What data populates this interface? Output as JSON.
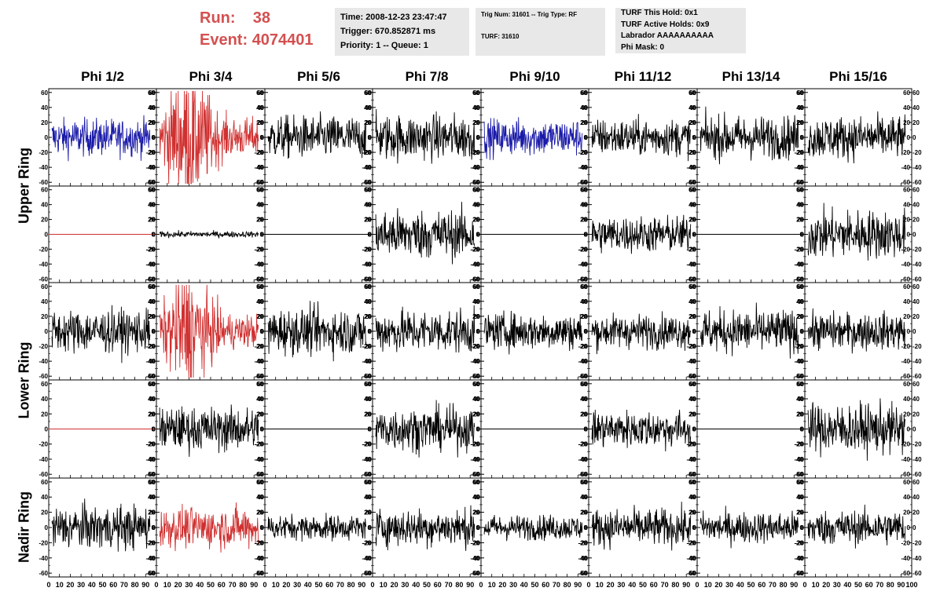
{
  "header": {
    "run_label": "Run:",
    "run_value": "38",
    "event_label": "Event:",
    "event_value": "4074401",
    "time": "Time: 2008-12-23 23:47:47",
    "trigger": "Trigger: 670.852871 ms",
    "priority": "Priority: 1 -- Queue: 1",
    "trig_num": "Trig Num: 31601 -- Trig Type: RF",
    "turf": "TURF: 31610",
    "turf_hold": "TURF This Hold: 0x1",
    "turf_active": "TURF Active Holds: 0x9",
    "labrador": "Labrador AAAAAAAAAA",
    "phi_mask": "Phi Mask: 0"
  },
  "columns": [
    "Phi 1/2",
    "Phi 3/4",
    "Phi 5/6",
    "Phi 7/8",
    "Phi 9/10",
    "Phi 11/12",
    "Phi 13/14",
    "Phi 15/16"
  ],
  "rows": [
    "Upper Ring",
    "Lower Ring",
    "Nadir Ring"
  ],
  "colors": {
    "black": "#000000",
    "blue": "#1a1aa8",
    "red": "#d03030",
    "title_red": "#d45050"
  },
  "chart_data": {
    "type": "line",
    "xlim": [
      0,
      100
    ],
    "ylim": [
      -65,
      65
    ],
    "y_ticks": [
      -60,
      -40,
      -20,
      0,
      20,
      40,
      60
    ],
    "x_tick_labels": [
      "0",
      "10",
      "20",
      "30",
      "40",
      "50",
      "60",
      "70",
      "80",
      "90",
      "100"
    ],
    "panels": [
      {
        "row": 0,
        "col": 0,
        "color": "blue",
        "amplitude": 12,
        "flat": false
      },
      {
        "row": 0,
        "col": 1,
        "color": "red",
        "amplitude": 25,
        "flat": false
      },
      {
        "row": 0,
        "col": 2,
        "color": "black",
        "amplitude": 14,
        "flat": false
      },
      {
        "row": 0,
        "col": 3,
        "color": "black",
        "amplitude": 15,
        "flat": false
      },
      {
        "row": 0,
        "col": 4,
        "color": "blue",
        "amplitude": 12,
        "flat": false
      },
      {
        "row": 0,
        "col": 5,
        "color": "black",
        "amplitude": 12,
        "flat": false
      },
      {
        "row": 0,
        "col": 6,
        "color": "black",
        "amplitude": 14,
        "flat": false
      },
      {
        "row": 0,
        "col": 7,
        "color": "black",
        "amplitude": 14,
        "flat": false
      },
      {
        "row": 1,
        "col": 0,
        "color": "red",
        "amplitude": 0,
        "flat": true
      },
      {
        "row": 1,
        "col": 1,
        "color": "black",
        "amplitude": 2,
        "flat": false
      },
      {
        "row": 1,
        "col": 2,
        "color": "black",
        "amplitude": 0,
        "flat": true
      },
      {
        "row": 1,
        "col": 3,
        "color": "black",
        "amplitude": 16,
        "flat": false
      },
      {
        "row": 1,
        "col": 4,
        "color": "black",
        "amplitude": 0,
        "flat": true
      },
      {
        "row": 1,
        "col": 5,
        "color": "black",
        "amplitude": 12,
        "flat": false
      },
      {
        "row": 1,
        "col": 6,
        "color": "black",
        "amplitude": 0,
        "flat": true
      },
      {
        "row": 1,
        "col": 7,
        "color": "black",
        "amplitude": 16,
        "flat": false
      },
      {
        "row": 2,
        "col": 0,
        "color": "black",
        "amplitude": 14,
        "flat": false
      },
      {
        "row": 2,
        "col": 1,
        "color": "red",
        "amplitude": 22,
        "flat": false
      },
      {
        "row": 2,
        "col": 2,
        "color": "black",
        "amplitude": 15,
        "flat": false
      },
      {
        "row": 2,
        "col": 3,
        "color": "black",
        "amplitude": 14,
        "flat": false
      },
      {
        "row": 2,
        "col": 4,
        "color": "black",
        "amplitude": 12,
        "flat": false
      },
      {
        "row": 2,
        "col": 5,
        "color": "black",
        "amplitude": 11,
        "flat": false
      },
      {
        "row": 2,
        "col": 6,
        "color": "black",
        "amplitude": 14,
        "flat": false
      },
      {
        "row": 2,
        "col": 7,
        "color": "black",
        "amplitude": 12,
        "flat": false
      },
      {
        "row": 3,
        "col": 0,
        "color": "red",
        "amplitude": 0,
        "flat": true
      },
      {
        "row": 3,
        "col": 1,
        "color": "black",
        "amplitude": 14,
        "flat": false
      },
      {
        "row": 3,
        "col": 2,
        "color": "black",
        "amplitude": 0,
        "flat": true
      },
      {
        "row": 3,
        "col": 3,
        "color": "black",
        "amplitude": 14,
        "flat": false
      },
      {
        "row": 3,
        "col": 4,
        "color": "black",
        "amplitude": 0,
        "flat": true
      },
      {
        "row": 3,
        "col": 5,
        "color": "black",
        "amplitude": 12,
        "flat": false
      },
      {
        "row": 3,
        "col": 6,
        "color": "black",
        "amplitude": 0,
        "flat": true
      },
      {
        "row": 3,
        "col": 7,
        "color": "black",
        "amplitude": 16,
        "flat": false
      },
      {
        "row": 4,
        "col": 0,
        "color": "black",
        "amplitude": 14,
        "flat": false
      },
      {
        "row": 4,
        "col": 1,
        "color": "red",
        "amplitude": 13,
        "flat": false
      },
      {
        "row": 4,
        "col": 2,
        "color": "black",
        "amplitude": 8,
        "flat": false
      },
      {
        "row": 4,
        "col": 3,
        "color": "black",
        "amplitude": 12,
        "flat": false
      },
      {
        "row": 4,
        "col": 4,
        "color": "black",
        "amplitude": 8,
        "flat": false
      },
      {
        "row": 4,
        "col": 5,
        "color": "black",
        "amplitude": 12,
        "flat": false
      },
      {
        "row": 4,
        "col": 6,
        "color": "black",
        "amplitude": 10,
        "flat": false
      },
      {
        "row": 4,
        "col": 7,
        "color": "black",
        "amplitude": 11,
        "flat": false
      }
    ]
  }
}
